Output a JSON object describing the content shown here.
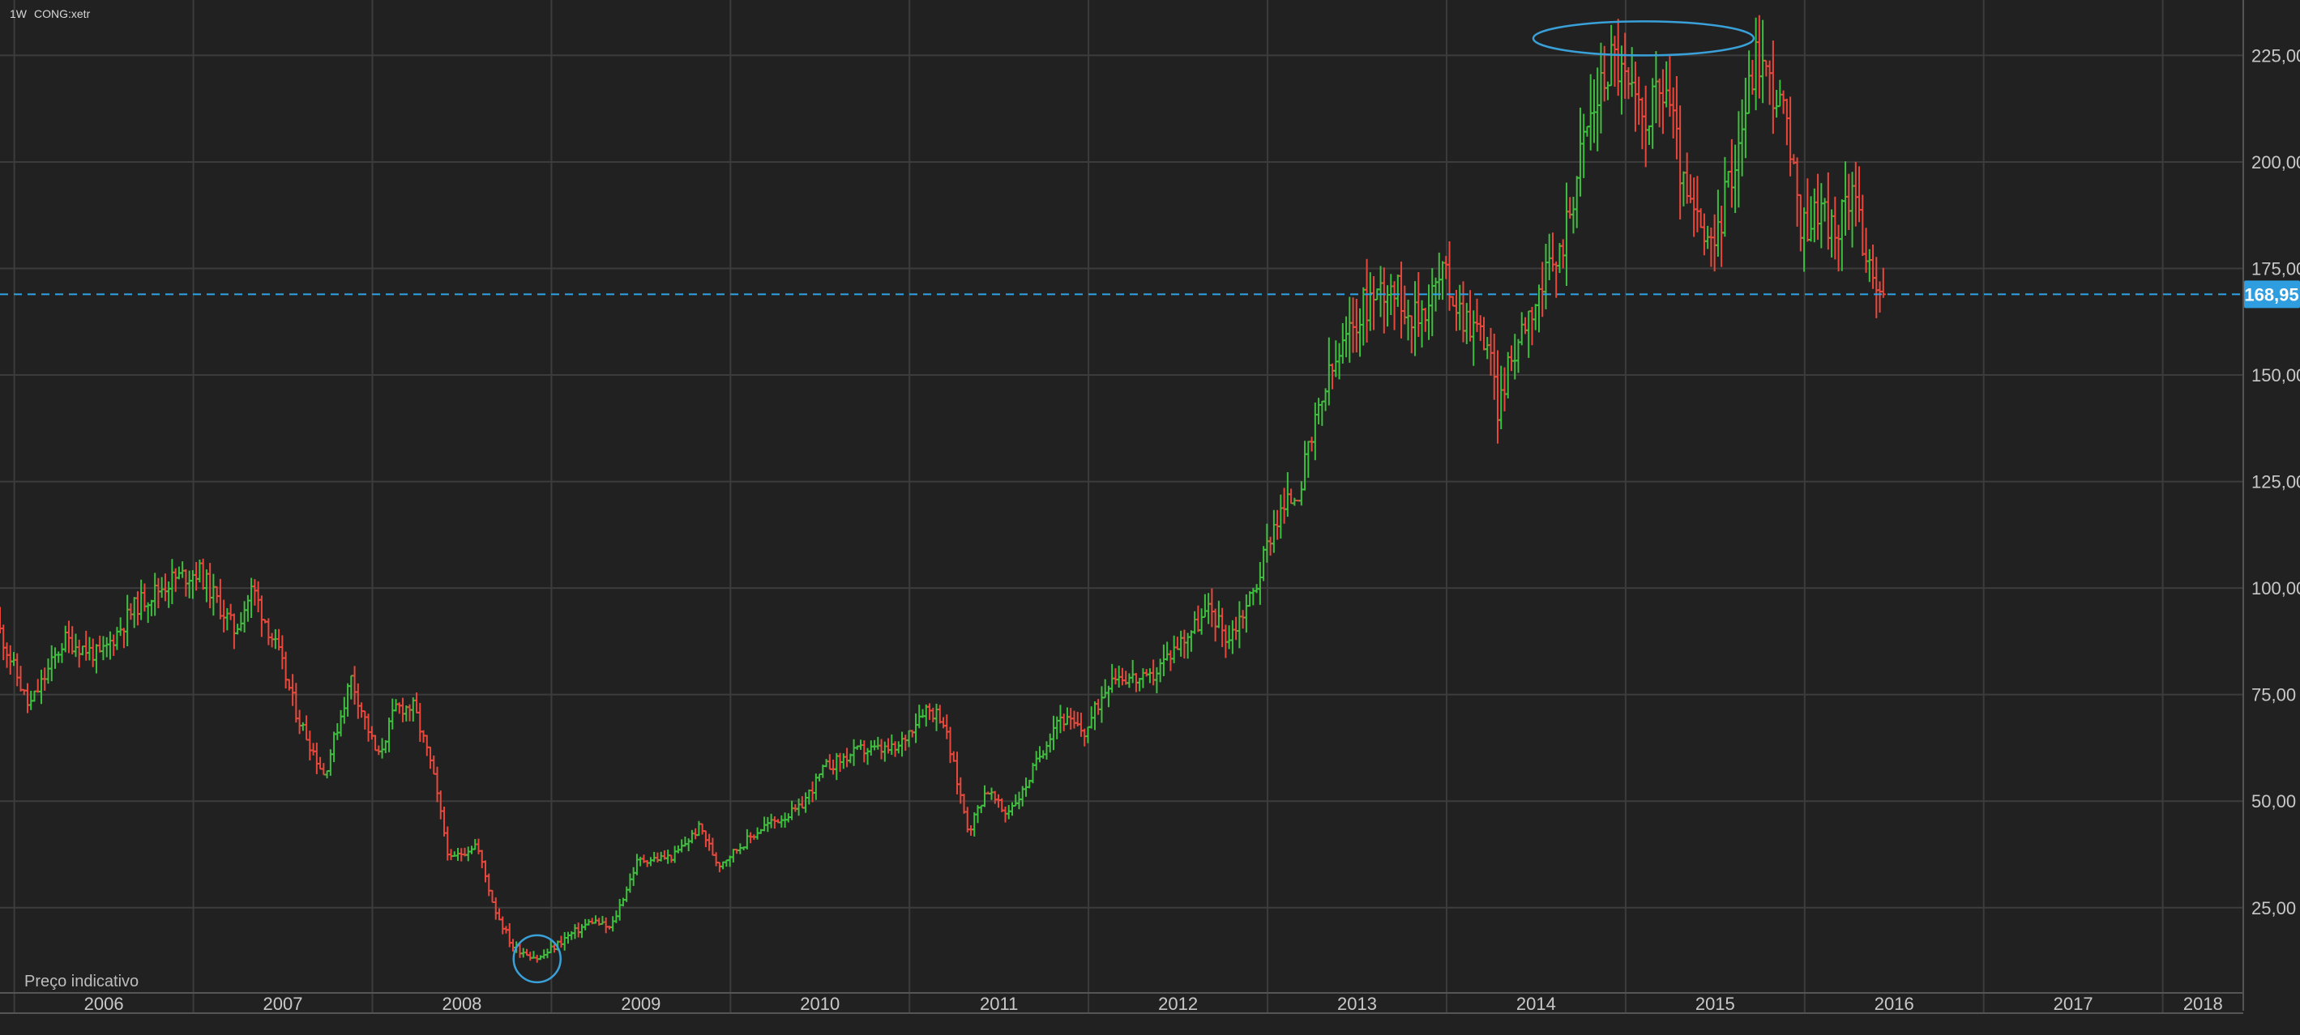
{
  "header": {
    "interval": "1W",
    "symbol": "CONG:xetr"
  },
  "footnote": "Preço indicativo",
  "colors": {
    "up": "#3fbf3f",
    "down": "#e8483c",
    "grid": "#3c3c3c",
    "background": "#212121",
    "accent": "#2fa3e6",
    "annotation": "#3aa0d8"
  },
  "chart_data": {
    "type": "ohlc",
    "interval": "weekly",
    "x_axis_labels": [
      "2006",
      "2007",
      "2008",
      "2009",
      "2010",
      "2011",
      "2012",
      "2013",
      "2014",
      "2015",
      "2016",
      "2017",
      "2018"
    ],
    "y_axis_labels": [
      "25,00",
      "50,00",
      "75,00",
      "100,00",
      "125,00",
      "150,00",
      "175,00",
      "200,00",
      "225,00"
    ],
    "y_ticks": [
      25,
      50,
      75,
      100,
      125,
      150,
      175,
      200,
      225
    ],
    "x_range": [
      2005.92,
      2018.45
    ],
    "y_range": [
      5,
      238
    ],
    "grid": true,
    "last_price": {
      "value": 168.95,
      "label": "168,95"
    },
    "annotations": [
      {
        "type": "circle",
        "around": "2009 low",
        "x": 2008.92,
        "y": 13
      },
      {
        "type": "ellipse",
        "around": "2015 highs",
        "x": 2015.1,
        "y": 229
      }
    ],
    "price_path": [
      [
        2005.92,
        92
      ],
      [
        2006.1,
        72
      ],
      [
        2006.3,
        88
      ],
      [
        2006.5,
        84
      ],
      [
        2006.7,
        96
      ],
      [
        2006.9,
        102
      ],
      [
        2007.05,
        104
      ],
      [
        2007.25,
        90
      ],
      [
        2007.35,
        100
      ],
      [
        2007.5,
        84
      ],
      [
        2007.6,
        70
      ],
      [
        2007.75,
        56
      ],
      [
        2007.9,
        79
      ],
      [
        2008.05,
        60
      ],
      [
        2008.15,
        72
      ],
      [
        2008.25,
        72
      ],
      [
        2008.35,
        58
      ],
      [
        2008.45,
        36
      ],
      [
        2008.6,
        40
      ],
      [
        2008.7,
        25
      ],
      [
        2008.8,
        16
      ],
      [
        2008.95,
        13
      ],
      [
        2009.1,
        18
      ],
      [
        2009.25,
        22
      ],
      [
        2009.35,
        20
      ],
      [
        2009.5,
        36
      ],
      [
        2009.7,
        37
      ],
      [
        2009.85,
        44
      ],
      [
        2009.95,
        35
      ],
      [
        2010.2,
        44
      ],
      [
        2010.4,
        48
      ],
      [
        2010.55,
        58
      ],
      [
        2010.75,
        62
      ],
      [
        2010.95,
        62
      ],
      [
        2011.1,
        72
      ],
      [
        2011.2,
        70
      ],
      [
        2011.35,
        43
      ],
      [
        2011.45,
        53
      ],
      [
        2011.55,
        47
      ],
      [
        2011.65,
        52
      ],
      [
        2011.85,
        70
      ],
      [
        2012.0,
        66
      ],
      [
        2012.15,
        80
      ],
      [
        2012.35,
        78
      ],
      [
        2012.5,
        86
      ],
      [
        2012.7,
        95
      ],
      [
        2012.8,
        88
      ],
      [
        2012.95,
        100
      ],
      [
        2013.05,
        115
      ],
      [
        2013.2,
        124
      ],
      [
        2013.35,
        148
      ],
      [
        2013.55,
        166
      ],
      [
        2013.7,
        172
      ],
      [
        2013.85,
        163
      ],
      [
        2014.0,
        174
      ],
      [
        2014.1,
        165
      ],
      [
        2014.25,
        158
      ],
      [
        2014.3,
        142
      ],
      [
        2014.45,
        163
      ],
      [
        2014.65,
        178
      ],
      [
        2014.8,
        208
      ],
      [
        2014.95,
        226
      ],
      [
        2015.1,
        210
      ],
      [
        2015.25,
        218
      ],
      [
        2015.35,
        192
      ],
      [
        2015.5,
        178
      ],
      [
        2015.65,
        205
      ],
      [
        2015.75,
        226
      ],
      [
        2015.9,
        212
      ],
      [
        2016.0,
        184
      ],
      [
        2016.1,
        190
      ],
      [
        2016.2,
        182
      ],
      [
        2016.3,
        198
      ],
      [
        2016.35,
        178
      ],
      [
        2016.4,
        170
      ],
      [
        2016.45,
        168
      ]
    ]
  }
}
